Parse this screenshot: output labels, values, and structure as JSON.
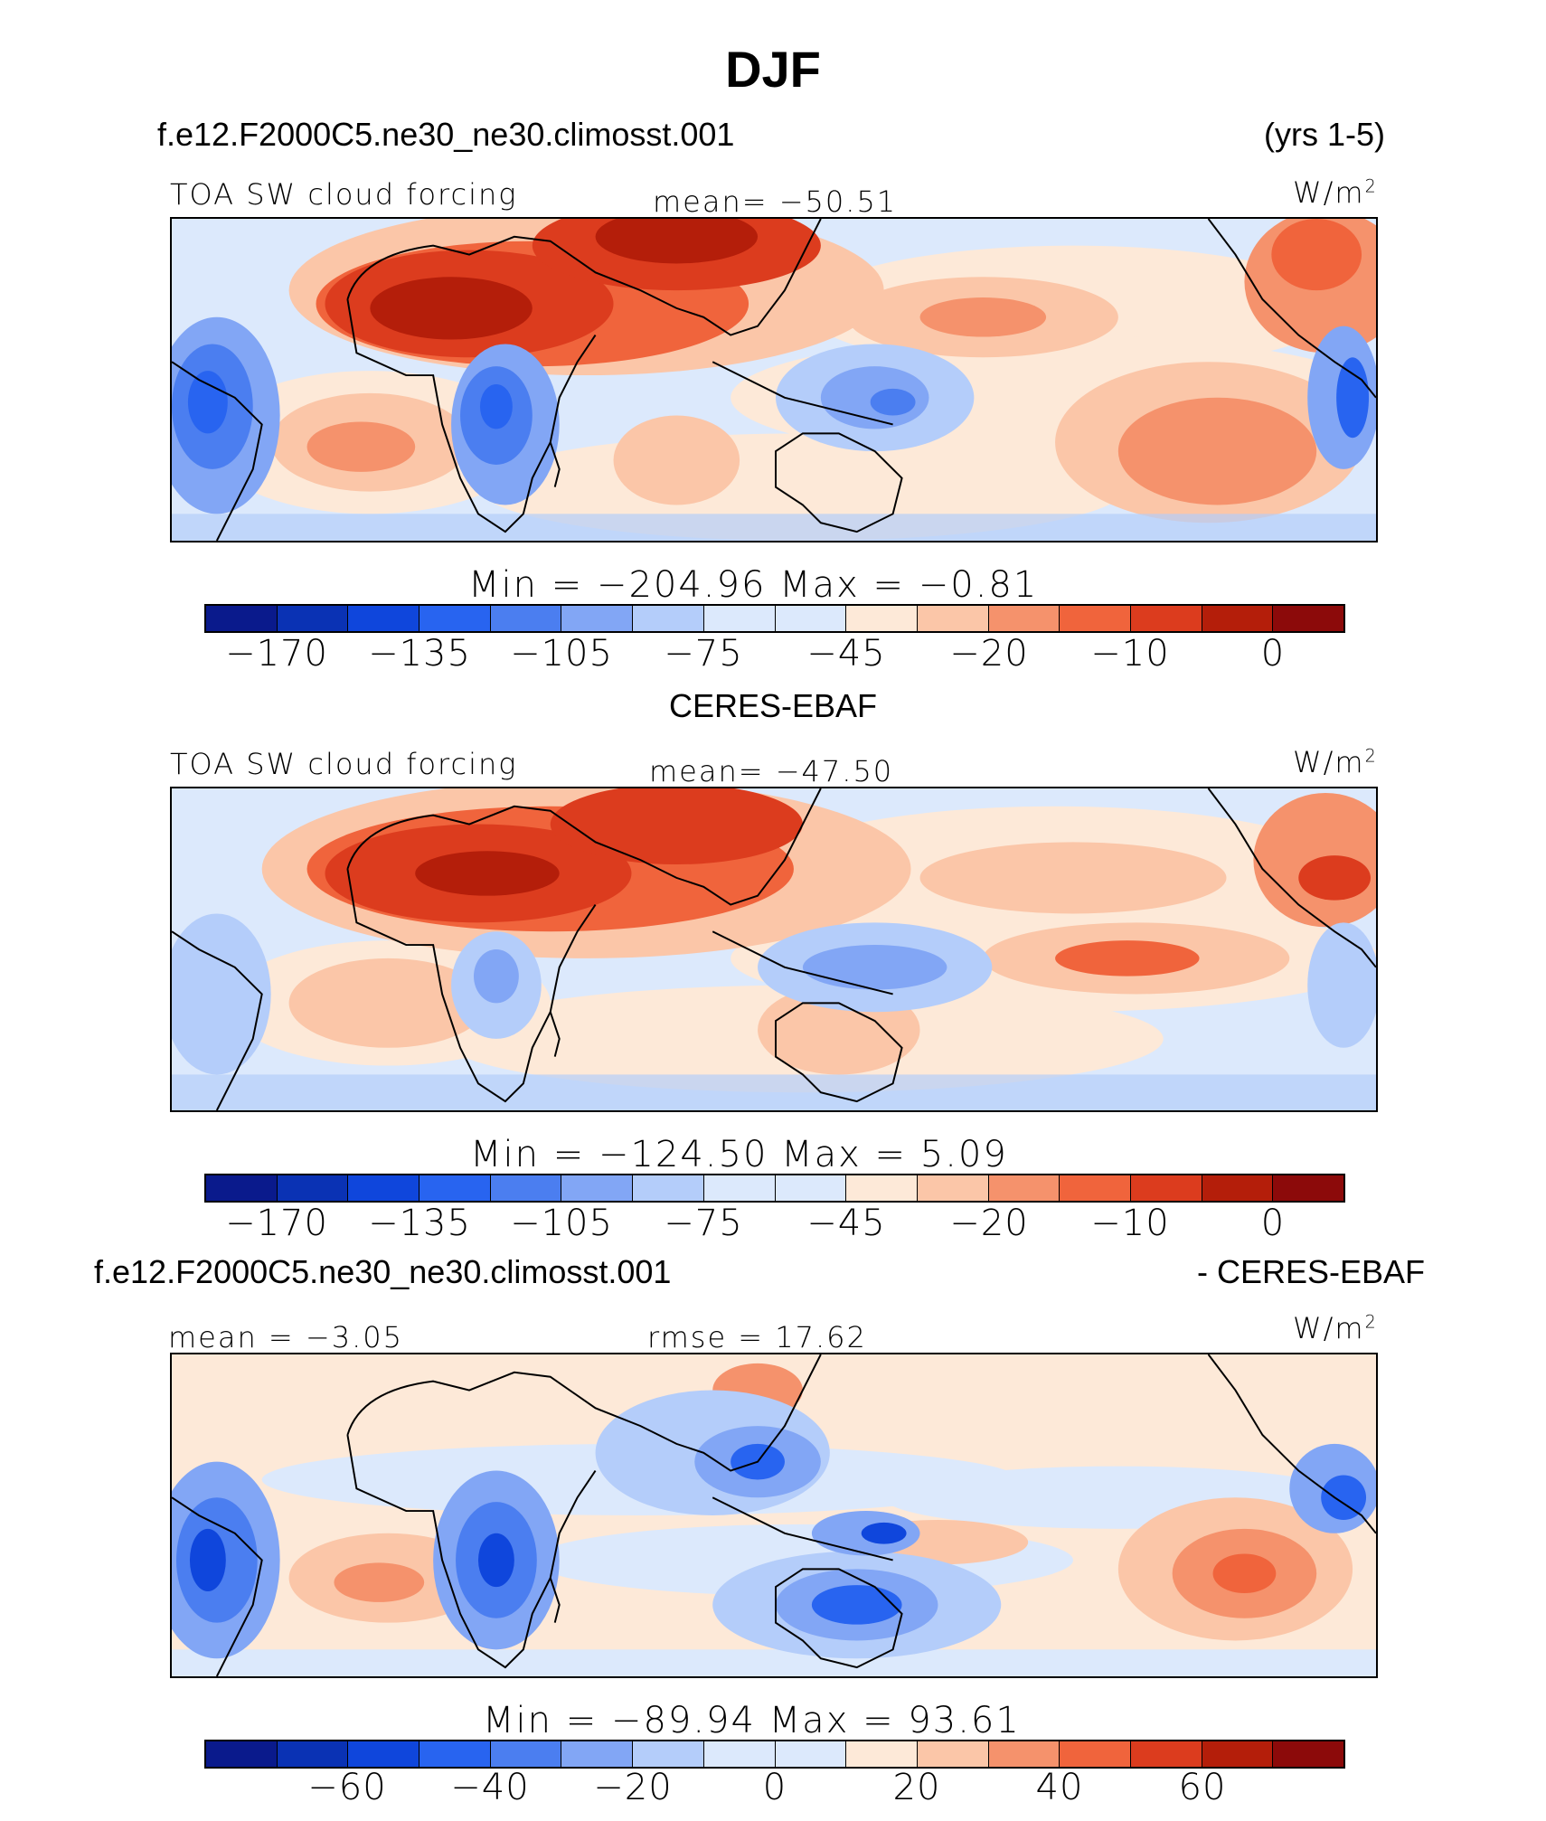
{
  "title": "DJF",
  "colors": [
    "#0a1a8c",
    "#0a32b4",
    "#0f46dc",
    "#2864f0",
    "#4b7ef0",
    "#82a6f5",
    "#b4cdfa",
    "#dce9fc",
    "#fde9d8",
    "#fbc6a8",
    "#f5926c",
    "#f0643c",
    "#dc3c1e",
    "#b41e0a",
    "#8c0a0a"
  ],
  "panel1": {
    "case": "f.e12.F2000C5.ne30_ne30.climosst.001",
    "years": "(yrs 1-5)",
    "variable": "TOA SW cloud forcing",
    "mean": "mean= −50.51",
    "units": "W/m",
    "units_sup": "2",
    "minmax": "Min = −204.96  Max =   −0.81",
    "ticks": [
      "−170",
      "−135",
      "−105",
      "−75",
      "−45",
      "−20",
      "−10",
      "0"
    ]
  },
  "panel2": {
    "case": "CERES-EBAF",
    "variable": "TOA SW cloud forcing",
    "mean": "mean= −47.50",
    "units": "W/m",
    "units_sup": "2",
    "minmax": "Min = −124.50  Max =    5.09",
    "ticks": [
      "−170",
      "−135",
      "−105",
      "−75",
      "−45",
      "−20",
      "−10",
      "0"
    ]
  },
  "panel3": {
    "case": "f.e12.F2000C5.ne30_ne30.climosst.001",
    "minus": "- CERES-EBAF",
    "mean": "mean =   −3.05",
    "rmse": "rmse =   17.62",
    "units": "W/m",
    "units_sup": "2",
    "minmax": "Min = −89.94  Max =   93.61",
    "ticks": [
      "−60",
      "−40",
      "−20",
      "0",
      "20",
      "40",
      "60"
    ]
  }
}
